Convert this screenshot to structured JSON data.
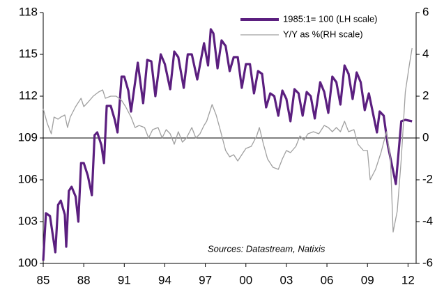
{
  "chart_data": {
    "type": "line",
    "annotation": "Sources: Datastream, Natixis",
    "xlim": [
      1985,
      2012.6
    ],
    "xticks": [
      {
        "value": 1985,
        "label": "85"
      },
      {
        "value": 1988,
        "label": "88"
      },
      {
        "value": 1991,
        "label": "91"
      },
      {
        "value": 1994,
        "label": "94"
      },
      {
        "value": 1997,
        "label": "97"
      },
      {
        "value": 2000,
        "label": "00"
      },
      {
        "value": 2003,
        "label": "03"
      },
      {
        "value": 2006,
        "label": "06"
      },
      {
        "value": 2009,
        "label": "09"
      },
      {
        "value": 2012,
        "label": "12"
      }
    ],
    "ylim": [
      100,
      118
    ],
    "yticks": [
      100,
      103,
      106,
      109,
      112,
      115,
      118
    ],
    "y2lim": [
      -6,
      6
    ],
    "y2ticks": [
      -6,
      -4,
      -2,
      0,
      2,
      4,
      6
    ],
    "legend": "top-right",
    "series": [
      {
        "name": "1985:1= 100 (LH scale)",
        "color": "#5b1f7f",
        "axis": "y",
        "x": [
          1985.0,
          1985.2,
          1985.5,
          1985.9,
          1986.1,
          1986.3,
          1986.6,
          1986.7,
          1986.9,
          1987.1,
          1987.4,
          1987.6,
          1987.8,
          1988.0,
          1988.3,
          1988.6,
          1988.8,
          1989.0,
          1989.3,
          1989.5,
          1989.7,
          1990.0,
          1990.3,
          1990.5,
          1990.8,
          1991.0,
          1991.3,
          1991.5,
          1992.0,
          1992.4,
          1992.7,
          1993.0,
          1993.3,
          1993.7,
          1994.0,
          1994.4,
          1994.7,
          1995.0,
          1995.4,
          1995.7,
          1996.0,
          1996.4,
          1996.9,
          1997.2,
          1997.4,
          1997.6,
          1997.9,
          1998.2,
          1998.5,
          1998.8,
          1999.1,
          1999.4,
          1999.7,
          2000.0,
          2000.3,
          2000.6,
          2000.9,
          2001.2,
          2001.5,
          2001.8,
          2002.1,
          2002.4,
          2002.7,
          2003.0,
          2003.3,
          2003.6,
          2003.9,
          2004.2,
          2004.5,
          2004.8,
          2005.1,
          2005.5,
          2005.8,
          2006.1,
          2006.4,
          2006.7,
          2007.0,
          2007.3,
          2007.6,
          2007.9,
          2008.2,
          2008.5,
          2008.8,
          2009.1,
          2009.4,
          2009.7,
          2009.9,
          2010.2,
          2010.5,
          2011.1,
          2011.5,
          2011.8,
          2012.3
        ],
        "values": [
          100.2,
          103.6,
          103.4,
          100.8,
          104.2,
          104.5,
          103.5,
          101.2,
          105.2,
          105.5,
          104.8,
          103.0,
          107.2,
          107.2,
          106.3,
          104.9,
          109.2,
          109.4,
          108.5,
          107.2,
          111.3,
          111.3,
          110.3,
          109.4,
          113.4,
          113.4,
          112.4,
          110.9,
          114.4,
          111.5,
          114.6,
          114.5,
          112.0,
          115.0,
          114.3,
          112.5,
          115.2,
          114.8,
          112.6,
          115.0,
          115.0,
          113.2,
          115.8,
          114.2,
          116.8,
          116.5,
          114.0,
          116.0,
          115.6,
          113.8,
          114.8,
          114.8,
          112.6,
          114.3,
          114.3,
          112.2,
          113.8,
          113.6,
          111.2,
          112.2,
          112.0,
          110.6,
          112.4,
          111.8,
          110.2,
          112.5,
          112.2,
          110.6,
          112.3,
          112.0,
          110.4,
          113.0,
          112.3,
          110.8,
          113.4,
          113.0,
          111.4,
          114.2,
          113.6,
          111.8,
          113.7,
          113.0,
          111.0,
          112.2,
          110.8,
          109.4,
          110.9,
          110.6,
          108.5,
          105.7,
          110.2,
          110.3,
          110.2
        ]
      },
      {
        "name": "Y/Y as %(RH scale)",
        "color": "#a0a0a0",
        "axis": "y2",
        "x": [
          1985.0,
          1985.3,
          1985.6,
          1985.8,
          1986.1,
          1986.3,
          1986.6,
          1986.8,
          1987.0,
          1987.4,
          1987.8,
          1988.0,
          1988.3,
          1988.7,
          1989.1,
          1989.4,
          1989.6,
          1990.0,
          1990.4,
          1990.8,
          1991.1,
          1991.5,
          1991.8,
          1992.1,
          1992.5,
          1992.8,
          1993.1,
          1993.5,
          1993.8,
          1994.1,
          1994.4,
          1994.7,
          1995.0,
          1995.3,
          1995.6,
          1996.0,
          1996.3,
          1996.6,
          1996.9,
          1997.1,
          1997.5,
          1997.8,
          1998.1,
          1998.5,
          1998.8,
          1999.1,
          1999.4,
          1999.7,
          2000.0,
          2000.4,
          2000.8,
          2001.0,
          2001.3,
          2001.6,
          2002.0,
          2002.4,
          2002.7,
          2003.0,
          2003.3,
          2003.7,
          2004.0,
          2004.3,
          2004.6,
          2005.0,
          2005.4,
          2005.8,
          2006.1,
          2006.4,
          2006.7,
          2007.0,
          2007.3,
          2007.6,
          2008.0,
          2008.3,
          2008.7,
          2009.0,
          2009.2,
          2009.6,
          2010.0,
          2010.4,
          2010.7,
          2010.9,
          2011.2,
          2011.5,
          2011.8,
          2012.1,
          2012.3
        ],
        "values": [
          1.4,
          0.7,
          0.2,
          1.0,
          0.9,
          1.0,
          1.1,
          0.5,
          1.0,
          1.5,
          1.9,
          1.5,
          1.7,
          2.0,
          2.2,
          2.3,
          1.9,
          2.0,
          2.0,
          1.8,
          1.5,
          1.0,
          0.5,
          0.6,
          0.5,
          0.0,
          0.4,
          0.5,
          0.0,
          0.4,
          0.2,
          -0.3,
          0.3,
          -0.2,
          0.0,
          0.5,
          0.0,
          0.2,
          0.6,
          0.8,
          1.6,
          1.1,
          0.4,
          -0.6,
          -0.9,
          -0.8,
          -1.1,
          -0.8,
          -0.5,
          -0.4,
          0.1,
          0.5,
          -0.3,
          -1.0,
          -1.4,
          -1.5,
          -1.0,
          -0.6,
          -0.7,
          -0.4,
          0.1,
          -0.1,
          0.2,
          0.3,
          0.2,
          0.6,
          0.5,
          0.3,
          0.5,
          0.3,
          0.8,
          0.3,
          0.4,
          -0.3,
          -0.6,
          -0.6,
          -2.0,
          -1.5,
          -0.7,
          0.3,
          -1.0,
          -4.5,
          -3.5,
          -1.0,
          2.2,
          3.5,
          4.3
        ]
      }
    ]
  }
}
